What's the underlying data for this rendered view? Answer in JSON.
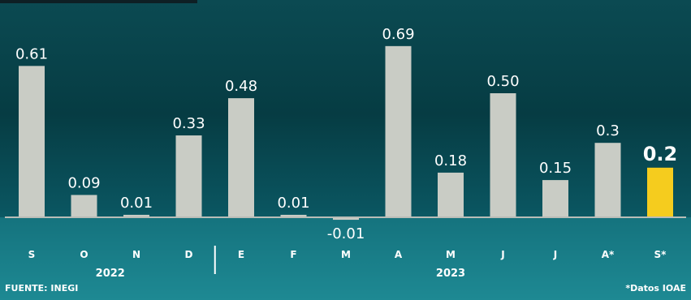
{
  "chart_data": {
    "type": "bar",
    "categories": [
      "S",
      "O",
      "N",
      "D",
      "E",
      "F",
      "M",
      "A",
      "M",
      "J",
      "J",
      "A*",
      "S*"
    ],
    "values": [
      0.61,
      0.09,
      0.01,
      0.33,
      0.48,
      0.01,
      -0.01,
      0.69,
      0.18,
      0.5,
      0.15,
      0.3,
      0.2
    ],
    "value_labels": [
      "0.61",
      "0.09",
      "0.01",
      "0.33",
      "0.48",
      "0.01",
      "-0.01",
      "0.69",
      "0.18",
      "0.50",
      "0.15",
      "0.3",
      "0.2"
    ],
    "year_groups": [
      {
        "label": "2022",
        "start": 0,
        "end": 3
      },
      {
        "label": "2023",
        "start": 4,
        "end": 12
      }
    ],
    "highlight_index": 12,
    "colors": {
      "bar": "#c9ccc5",
      "highlight": "#f5cc1e",
      "baseline": "#b9bdb7",
      "text": "#ffffff"
    },
    "grid": false,
    "legend": "none"
  },
  "footer": {
    "source": "FUENTE: INEGI",
    "note": "*Datos IOAE"
  }
}
